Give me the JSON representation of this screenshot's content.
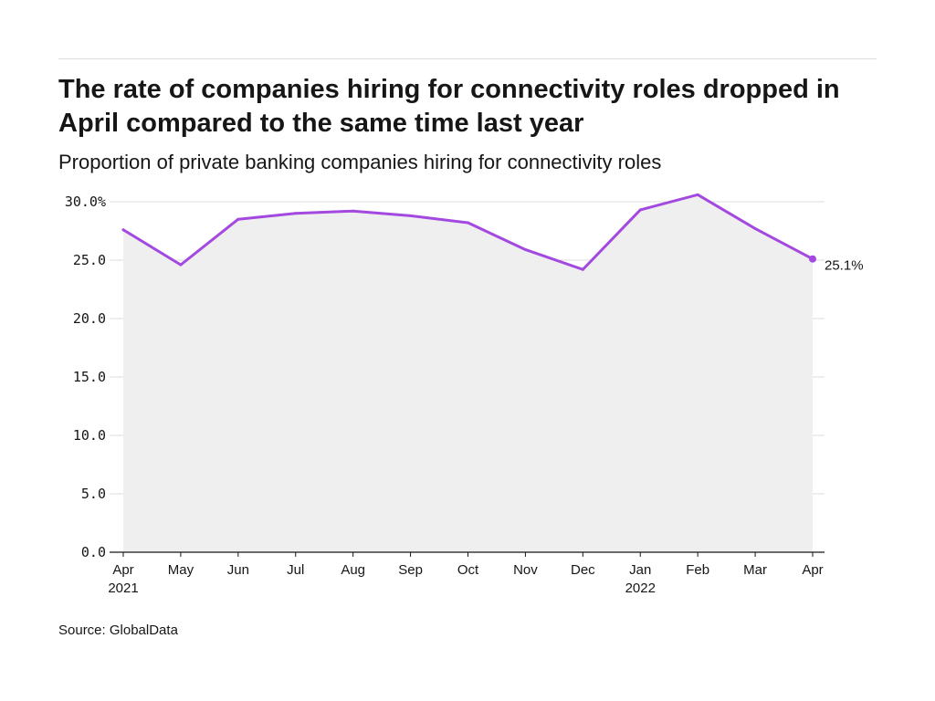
{
  "header": {
    "title": "The rate of companies hiring for connectivity roles dropped in April compared to the same time last year",
    "subtitle": "Proportion of private banking companies hiring for connectivity roles"
  },
  "footer": {
    "source": "Source: GlobalData"
  },
  "chart_data": {
    "type": "area",
    "title": "The rate of companies hiring for connectivity roles dropped in April compared to the same time last year",
    "subtitle": "Proportion of private banking companies hiring for connectivity roles",
    "xlabel": "",
    "ylabel": "",
    "categories": [
      "Apr",
      "May",
      "Jun",
      "Jul",
      "Aug",
      "Sep",
      "Oct",
      "Nov",
      "Dec",
      "Jan",
      "Feb",
      "Mar",
      "Apr"
    ],
    "category_years": [
      "2021",
      "",
      "",
      "",
      "",
      "",
      "",
      "",
      "",
      "2022",
      "",
      "",
      ""
    ],
    "series": [
      {
        "values": [
          27.6,
          24.6,
          28.5,
          29.0,
          29.2,
          28.8,
          28.2,
          25.9,
          24.2,
          29.3,
          30.6,
          27.7,
          25.1
        ]
      }
    ],
    "ylim": [
      0,
      30
    ],
    "yticks": [
      0,
      5,
      10,
      15,
      20,
      25,
      30
    ],
    "ytick_labels": [
      "0.0",
      "5.0",
      "10.0",
      "15.0",
      "20.0",
      "25.0",
      "30.0%"
    ],
    "end_label": "25.1%",
    "grid": true,
    "legend": "none",
    "colors": {
      "line": "#a349e0",
      "area": "#efefef",
      "grid": "#dddddd",
      "axis": "#161616"
    }
  }
}
